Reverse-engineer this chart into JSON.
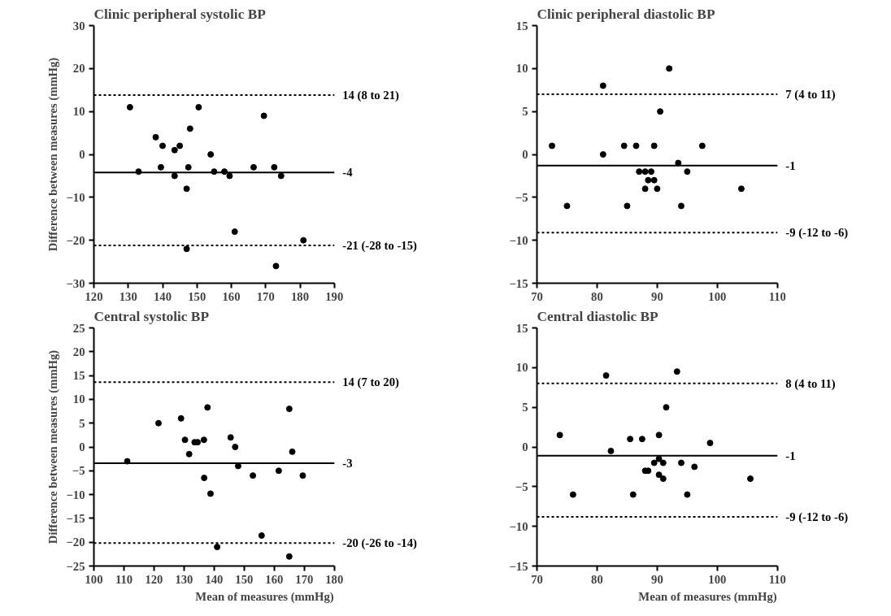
{
  "chart_data": [
    {
      "type": "scatter",
      "title": "Clinic peripheral systolic BP",
      "ylabel": "Difference between measures (mmHg)",
      "xlim": [
        120,
        190
      ],
      "xticks": [
        120,
        130,
        140,
        150,
        160,
        170,
        180,
        190
      ],
      "ylim": [
        -30,
        30
      ],
      "yticks": [
        -30,
        -20,
        -10,
        0,
        10,
        20,
        30
      ],
      "marker": "circle",
      "grid": false,
      "series": [
        {
          "color": "#000000",
          "x": [
            130.5,
            133,
            138,
            139.5,
            140,
            143.5,
            143.5,
            145,
            147,
            147,
            147.5,
            148,
            150.5,
            154,
            155,
            158,
            159.5,
            161,
            166.5,
            169.5,
            172.5,
            173,
            174.5,
            181
          ],
          "values": [
            11,
            -4,
            4,
            -3,
            2,
            1,
            -5,
            2,
            -8,
            -22,
            -3,
            6,
            11,
            0,
            -4,
            -4,
            -5,
            -18,
            -3,
            9,
            -3,
            -26,
            -5,
            -20
          ]
        }
      ],
      "ref_lines": [
        {
          "axis": "y",
          "value": 13.8,
          "label": "14 (8 to 21)",
          "line_style": "dotted",
          "color": "#000000"
        },
        {
          "axis": "y",
          "value": -4.2,
          "label": "-4",
          "line_style": "solid",
          "color": "#000000"
        },
        {
          "axis": "y",
          "value": -21.2,
          "label": "-21 (-28 to -15)",
          "line_style": "dotted",
          "color": "#000000"
        }
      ]
    },
    {
      "type": "scatter",
      "title": "Clinic peripheral diastolic BP",
      "xlim": [
        70,
        110
      ],
      "xticks": [
        70,
        80,
        90,
        100,
        110
      ],
      "ylim": [
        -15,
        15
      ],
      "yticks": [
        -15,
        -10,
        -5,
        0,
        5,
        10,
        15
      ],
      "marker": "circle",
      "grid": false,
      "series": [
        {
          "color": "#000000",
          "x": [
            72.5,
            75,
            81,
            81,
            84.5,
            85,
            86.5,
            87,
            88,
            88,
            88.5,
            89,
            89.5,
            89.5,
            90,
            90.5,
            92,
            93.5,
            94,
            95,
            97.5,
            104
          ],
          "values": [
            1,
            -6,
            8,
            0,
            1,
            -6,
            1,
            -2,
            -2,
            -4,
            -3,
            -2,
            1,
            -3,
            -4,
            5,
            10,
            -1,
            -6,
            -2,
            1,
            -4
          ]
        }
      ],
      "ref_lines": [
        {
          "axis": "y",
          "value": 7,
          "label": "7 (4 to 11)",
          "line_style": "dotted",
          "color": "#000000"
        },
        {
          "axis": "y",
          "value": -1.3,
          "label": "-1",
          "line_style": "solid",
          "color": "#000000"
        },
        {
          "axis": "y",
          "value": -9.1,
          "label": "-9 (-12 to -6)",
          "line_style": "dotted",
          "color": "#000000"
        }
      ]
    },
    {
      "type": "scatter",
      "title": "Central systolic BP",
      "xlabel": "Mean of measures (mmHg)",
      "ylabel": "Difference between measures (mmHg)",
      "xlim": [
        100,
        180
      ],
      "xticks": [
        100,
        110,
        120,
        130,
        140,
        150,
        160,
        170,
        180
      ],
      "ylim": [
        -25,
        25
      ],
      "yticks": [
        -25,
        -20,
        -15,
        -10,
        -5,
        0,
        5,
        10,
        15,
        20,
        25
      ],
      "marker": "circle",
      "grid": false,
      "series": [
        {
          "color": "#000000",
          "x": [
            111.1,
            121.5,
            129,
            130.3,
            131.7,
            133.5,
            134.5,
            136.6,
            136.7,
            137.8,
            138.8,
            141,
            145.5,
            147,
            148,
            152.9,
            155.8,
            161.5,
            165,
            165,
            166,
            169.5
          ],
          "values": [
            -3,
            5,
            6,
            1.5,
            -1.5,
            1,
            1,
            1.5,
            -6.5,
            8.3,
            -9.8,
            -21,
            2,
            0,
            -4,
            -6,
            -18.6,
            -5,
            8,
            -23,
            -1,
            -6
          ]
        }
      ],
      "ref_lines": [
        {
          "axis": "y",
          "value": 13.6,
          "label": "14 (7 to 20)",
          "line_style": "dotted",
          "color": "#000000"
        },
        {
          "axis": "y",
          "value": -3.4,
          "label": "-3",
          "line_style": "solid",
          "color": "#000000"
        },
        {
          "axis": "y",
          "value": -20.2,
          "label": "-20 (-26 to -14)",
          "line_style": "dotted",
          "color": "#000000"
        }
      ]
    },
    {
      "type": "scatter",
      "title": "Central diastolic BP",
      "xlabel": "Mean of measures (mmHg)",
      "xlim": [
        70,
        110
      ],
      "xticks": [
        70,
        80,
        90,
        100,
        110
      ],
      "ylim": [
        -15,
        15
      ],
      "yticks": [
        -15,
        -10,
        -5,
        0,
        5,
        10,
        15
      ],
      "marker": "circle",
      "grid": false,
      "series": [
        {
          "color": "#000000",
          "x": [
            73.8,
            76,
            81.5,
            82.3,
            85.5,
            86,
            87.5,
            88,
            88.5,
            89.5,
            90.3,
            90.3,
            90.3,
            91,
            91,
            91.5,
            93.3,
            94,
            95,
            96.2,
            98.8,
            105.5
          ],
          "values": [
            1.5,
            -6,
            9,
            -0.5,
            1,
            -6,
            1,
            -3,
            -3,
            -2,
            1.5,
            -1.5,
            -3.5,
            -2,
            -4,
            5,
            9.5,
            -2,
            -6,
            -2.5,
            0.5,
            -4
          ]
        }
      ],
      "ref_lines": [
        {
          "axis": "y",
          "value": 8,
          "label": "8 (4 to 11)",
          "line_style": "dotted",
          "color": "#000000"
        },
        {
          "axis": "y",
          "value": -1.1,
          "label": "-1",
          "line_style": "solid",
          "color": "#000000"
        },
        {
          "axis": "y",
          "value": -8.8,
          "label": "-9 (-12 to -6)",
          "line_style": "dotted",
          "color": "#000000"
        }
      ]
    }
  ]
}
